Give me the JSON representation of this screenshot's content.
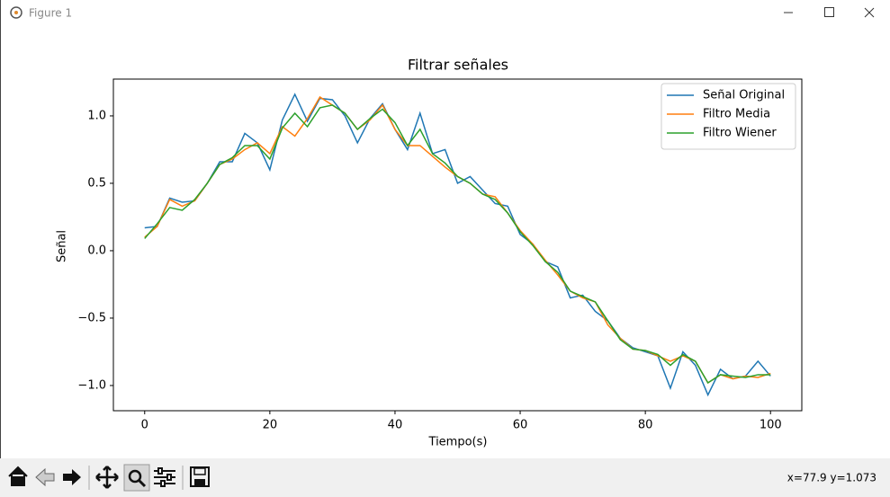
{
  "window": {
    "title": "Figure 1"
  },
  "status": "x=77.9 y=1.073",
  "chart_data": {
    "type": "line",
    "title": "Filtrar señales",
    "x_label": "Tiempo(s)",
    "y_label": "Señal",
    "x": [
      0,
      2,
      4,
      6,
      8,
      10,
      12,
      14,
      16,
      18,
      20,
      22,
      24,
      26,
      28,
      30,
      32,
      34,
      36,
      38,
      40,
      42,
      44,
      46,
      48,
      50,
      52,
      54,
      56,
      58,
      60,
      62,
      64,
      66,
      68,
      70,
      72,
      74,
      76,
      78,
      80,
      82,
      84,
      86,
      88,
      90,
      92,
      94,
      96,
      98,
      100
    ],
    "series": [
      {
        "name": "Señal Original",
        "color": "#1f77b4",
        "values": [
          0.17,
          0.18,
          0.39,
          0.36,
          0.37,
          0.5,
          0.66,
          0.66,
          0.87,
          0.8,
          0.6,
          0.97,
          1.16,
          0.96,
          1.13,
          1.12,
          1.0,
          0.8,
          0.98,
          1.09,
          0.9,
          0.75,
          1.02,
          0.72,
          0.75,
          0.5,
          0.55,
          0.45,
          0.35,
          0.33,
          0.12,
          0.05,
          -0.08,
          -0.12,
          -0.35,
          -0.33,
          -0.45,
          -0.52,
          -0.65,
          -0.72,
          -0.75,
          -0.78,
          -1.02,
          -0.75,
          -0.85,
          -1.07,
          -0.88,
          -0.95,
          -0.93,
          -0.82,
          -0.93
        ]
      },
      {
        "name": "Filtro Media",
        "color": "#ff7f0e",
        "values": [
          0.1,
          0.18,
          0.38,
          0.33,
          0.37,
          0.5,
          0.64,
          0.68,
          0.75,
          0.8,
          0.72,
          0.92,
          0.85,
          0.98,
          1.14,
          1.08,
          1.02,
          0.9,
          0.97,
          1.08,
          0.9,
          0.78,
          0.78,
          0.7,
          0.62,
          0.55,
          0.5,
          0.42,
          0.4,
          0.28,
          0.15,
          0.05,
          -0.07,
          -0.18,
          -0.3,
          -0.35,
          -0.38,
          -0.55,
          -0.65,
          -0.73,
          -0.74,
          -0.78,
          -0.82,
          -0.78,
          -0.82,
          -0.98,
          -0.92,
          -0.95,
          -0.93,
          -0.94,
          -0.91
        ]
      },
      {
        "name": "Filtro Wiener",
        "color": "#2ca02c",
        "values": [
          0.09,
          0.2,
          0.32,
          0.3,
          0.38,
          0.5,
          0.64,
          0.69,
          0.78,
          0.78,
          0.68,
          0.91,
          1.02,
          0.92,
          1.06,
          1.08,
          1.02,
          0.9,
          0.98,
          1.05,
          0.95,
          0.78,
          0.9,
          0.72,
          0.65,
          0.55,
          0.5,
          0.42,
          0.38,
          0.28,
          0.14,
          0.04,
          -0.08,
          -0.16,
          -0.3,
          -0.34,
          -0.38,
          -0.52,
          -0.66,
          -0.73,
          -0.74,
          -0.77,
          -0.85,
          -0.77,
          -0.82,
          -0.98,
          -0.92,
          -0.93,
          -0.94,
          -0.92,
          -0.92
        ]
      }
    ],
    "xlim": [
      -5,
      105
    ],
    "ylim": [
      -1.187,
      1.273
    ],
    "xticks": [
      0,
      20,
      40,
      60,
      80,
      100
    ],
    "yticks": [
      {
        "value": -1,
        "label": "−1.0"
      },
      {
        "value": -0.5,
        "label": "−0.5"
      },
      {
        "value": 0,
        "label": "0.0"
      },
      0.5,
      {
        "value": 1,
        "label": "1.0"
      }
    ],
    "legend": "upper right"
  }
}
